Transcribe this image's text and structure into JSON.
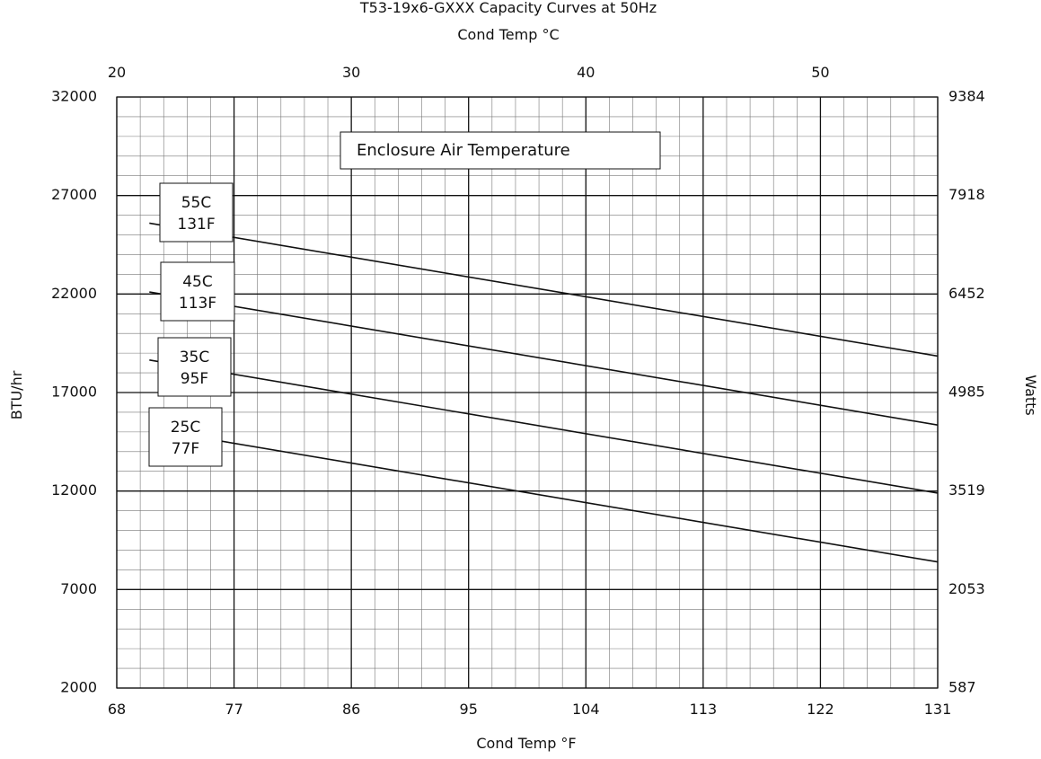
{
  "chart_data": {
    "type": "line",
    "title": "T53-19x6-GXXX Capacity Curves at 50Hz",
    "top_axis_label": "Cond Temp °C",
    "xlabel": "Cond Temp °F",
    "ylabel": "BTU/hr",
    "y2label": "Watts",
    "xlim": [
      68,
      131
    ],
    "ylim": [
      2000,
      32000
    ],
    "top_xlim": [
      20,
      55
    ],
    "x_ticks": [
      "68",
      "77",
      "86",
      "95",
      "104",
      "113",
      "122",
      "131"
    ],
    "y_ticks": [
      "2000",
      "7000",
      "12000",
      "17000",
      "22000",
      "27000",
      "32000"
    ],
    "y2_ticks": [
      "587",
      "2053",
      "3519",
      "4985",
      "6452",
      "7918",
      "9384"
    ],
    "top_ticks": [
      "20",
      "30",
      "40",
      "50"
    ],
    "grid": true,
    "legend_title": "Enclosure Air Temperature",
    "series": [
      {
        "name": "55C 131F",
        "label_lines": [
          "55C",
          "131F"
        ],
        "x": [
          70.5,
          131
        ],
        "y": [
          25600,
          18850
        ]
      },
      {
        "name": "45C 113F",
        "label_lines": [
          "45C",
          "113F"
        ],
        "x": [
          70.5,
          131
        ],
        "y": [
          22100,
          15350
        ]
      },
      {
        "name": "35C 95F",
        "label_lines": [
          "35C",
          "95F"
        ],
        "x": [
          70.5,
          131
        ],
        "y": [
          18650,
          11900
        ]
      },
      {
        "name": "25C 77F",
        "label_lines": [
          "25C",
          "77F"
        ],
        "x": [
          70.5,
          131
        ],
        "y": [
          15150,
          8400
        ]
      }
    ]
  }
}
